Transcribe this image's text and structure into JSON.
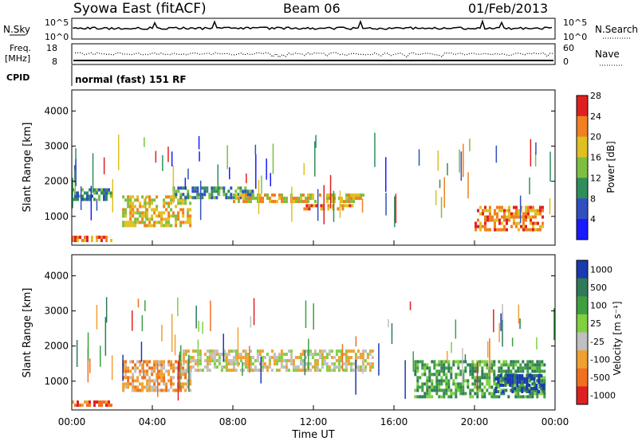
{
  "header": {
    "station": "Syowa East (fitACF)",
    "beam": "Beam 06",
    "date": "01/Feb/2013"
  },
  "top_panels": {
    "nsky_label": "N.Sky",
    "nsearch_label": "N.Search",
    "noise_ticks_left": [
      "10^5",
      "10^0"
    ],
    "noise_ticks_right": [
      "10^5",
      "10^0"
    ],
    "freq_label_1": "Freq.",
    "freq_label_2": "[MHz]",
    "freq_ticks": [
      "18",
      "8"
    ],
    "nave_label": "Nave",
    "nave_ticks": [
      "60",
      "0"
    ],
    "cpid_label": "CPID",
    "cpid_text": "normal (fast) 151 RF"
  },
  "chart_data": [
    {
      "type": "heatmap",
      "title": "",
      "xlabel": "Time UT",
      "ylabel": "Slant Range [km]",
      "x_ticks": [
        "00:00",
        "04:00",
        "08:00",
        "12:00",
        "16:00",
        "20:00",
        "00:00"
      ],
      "y_ticks": [
        "1000",
        "2000",
        "3000",
        "4000"
      ],
      "xlim": [
        0,
        24
      ],
      "ylim": [
        180,
        4600
      ],
      "colorbar": {
        "label": "Power [dB]",
        "ticks": [
          "4",
          "8",
          "12",
          "16",
          "20",
          "24",
          "28"
        ],
        "colors": [
          "#1a1aff",
          "#3050c0",
          "#2f8f5a",
          "#7fbf3f",
          "#e0c020",
          "#f08020",
          "#e02020"
        ]
      },
      "bands": [
        {
          "t0": 0.0,
          "t1": 2.0,
          "r0": 1450,
          "r1": 1800,
          "level": 2
        },
        {
          "t0": 2.5,
          "t1": 6.0,
          "r0": 700,
          "r1": 1600,
          "level": 4
        },
        {
          "t0": 5.0,
          "t1": 9.0,
          "r0": 1500,
          "r1": 1850,
          "level": 2
        },
        {
          "t0": 8.0,
          "t1": 14.5,
          "r0": 1350,
          "r1": 1650,
          "level": 4
        },
        {
          "t0": 11.5,
          "t1": 14.0,
          "r0": 1150,
          "r1": 1350,
          "level": 5
        },
        {
          "t0": 20.0,
          "t1": 23.5,
          "r0": 600,
          "r1": 1300,
          "level": 5
        },
        {
          "t0": 0.0,
          "t1": 2.0,
          "r0": 250,
          "r1": 450,
          "level": 5
        }
      ]
    },
    {
      "type": "heatmap",
      "title": "",
      "xlabel": "Time UT",
      "ylabel": "Slant Range [km]",
      "x_ticks": [
        "00:00",
        "04:00",
        "08:00",
        "12:00",
        "16:00",
        "20:00",
        "00:00"
      ],
      "y_ticks": [
        "1000",
        "2000",
        "3000",
        "4000"
      ],
      "xlim": [
        0,
        24
      ],
      "ylim": [
        180,
        4600
      ],
      "colorbar": {
        "label": "Velocity [m s⁻¹]",
        "ticks": [
          "1000",
          "500",
          "100",
          "25",
          "-25",
          "-100",
          "-500",
          "-1000"
        ],
        "colors": [
          "#1a3ab0",
          "#2f7a5a",
          "#3f9f3f",
          "#80d040",
          "#c0c0c0",
          "#f0a030",
          "#f07020",
          "#e02020"
        ]
      },
      "bands": [
        {
          "t0": 2.5,
          "t1": 6.0,
          "r0": 700,
          "r1": 1600,
          "level": 5
        },
        {
          "t0": 5.5,
          "t1": 15.0,
          "r0": 1300,
          "r1": 1900,
          "level": 4
        },
        {
          "t0": 17.0,
          "t1": 23.5,
          "r0": 500,
          "r1": 1600,
          "level": 2
        },
        {
          "t0": 21.0,
          "t1": 23.5,
          "r0": 700,
          "r1": 1200,
          "level": 0
        },
        {
          "t0": 0.0,
          "t1": 2.0,
          "r0": 250,
          "r1": 450,
          "level": 6
        }
      ]
    }
  ]
}
